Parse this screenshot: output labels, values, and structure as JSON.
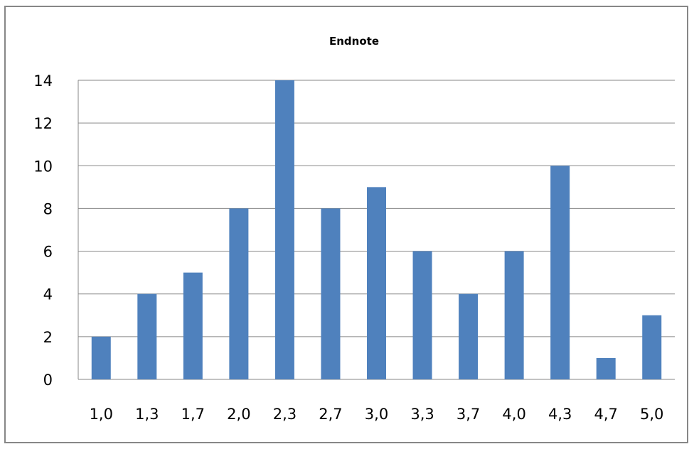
{
  "chart_data": {
    "type": "bar",
    "title": "Endnote",
    "categories": [
      "1,0",
      "1,3",
      "1,7",
      "2,0",
      "2,3",
      "2,7",
      "3,0",
      "3,3",
      "3,7",
      "4,0",
      "4,3",
      "4,7",
      "5,0"
    ],
    "values": [
      2,
      4,
      5,
      8,
      14,
      8,
      9,
      6,
      4,
      6,
      10,
      1,
      3
    ],
    "ylim": [
      0,
      14
    ],
    "yticks": [
      0,
      2,
      4,
      6,
      8,
      10,
      12,
      14
    ],
    "grid": true,
    "legend": "none",
    "bar_color": "#4F81BD",
    "grid_color": "#878787"
  }
}
